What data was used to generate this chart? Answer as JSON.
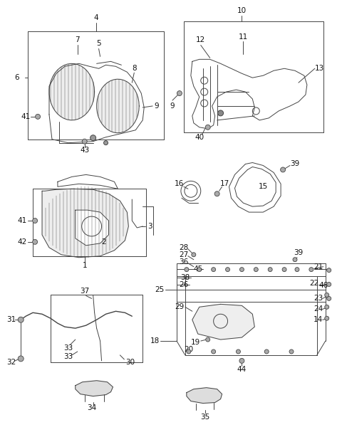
{
  "bg_color": "#ffffff",
  "line_color": "#444444",
  "text_color": "#111111",
  "fig_width": 4.8,
  "fig_height": 6.28,
  "dpi": 100
}
